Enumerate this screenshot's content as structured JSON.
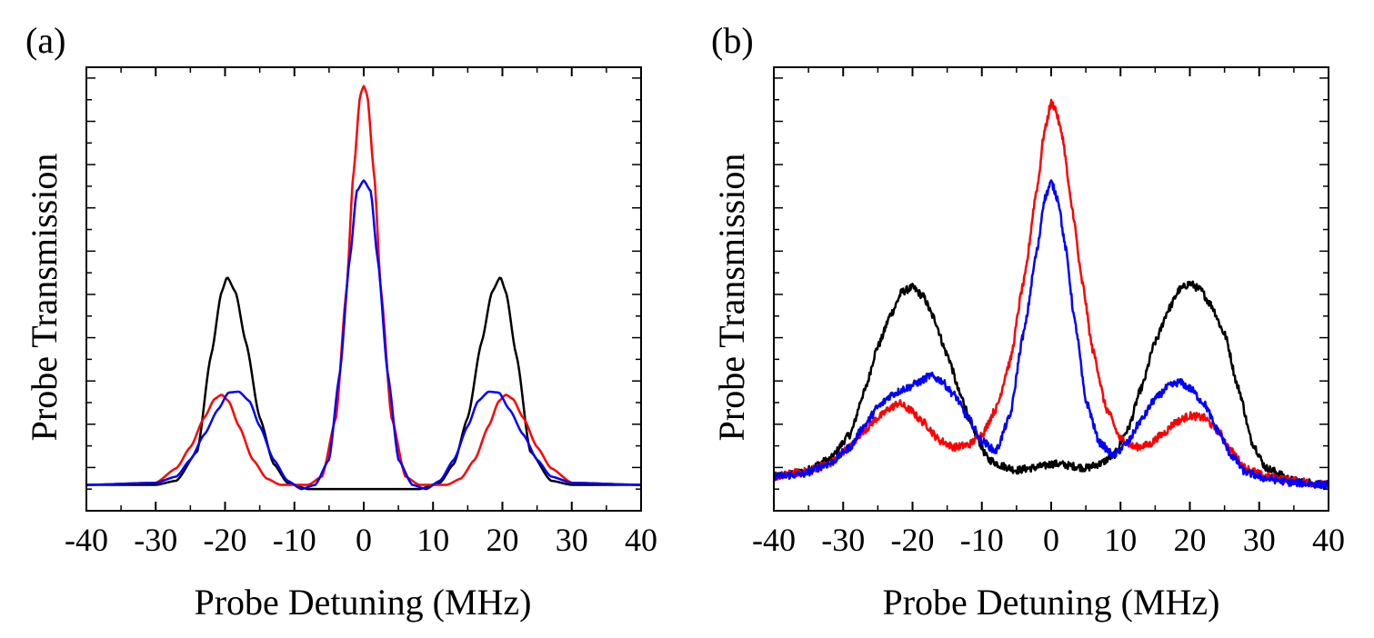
{
  "chart_data": [
    {
      "type": "line",
      "panel_label": "(a)",
      "xlabel": "Probe Detuning (MHz)",
      "ylabel": "Probe Transmission",
      "xlim": [
        -40,
        40
      ],
      "ylim": [
        0,
        1
      ],
      "x_ticks": [
        -40,
        -30,
        -20,
        -10,
        0,
        10,
        20,
        30,
        40
      ],
      "x_tick_labels": [
        "-40",
        "-30",
        "-20",
        "-10",
        "0",
        "10",
        "20",
        "30",
        "40"
      ],
      "y_tick_labels": false,
      "series": [
        {
          "name": "black",
          "color": "#000000",
          "points": [
            [
              -40,
              0.04
            ],
            [
              -30,
              0.04
            ],
            [
              -27,
              0.05
            ],
            [
              -24,
              0.12
            ],
            [
              -22,
              0.35
            ],
            [
              -20.5,
              0.5
            ],
            [
              -19.7,
              0.535
            ],
            [
              -18.5,
              0.5
            ],
            [
              -17,
              0.38
            ],
            [
              -15,
              0.2
            ],
            [
              -13,
              0.09
            ],
            [
              -11,
              0.045
            ],
            [
              -8,
              0.03
            ],
            [
              0,
              0.03
            ],
            [
              8,
              0.03
            ],
            [
              11,
              0.045
            ],
            [
              13,
              0.09
            ],
            [
              15,
              0.2
            ],
            [
              17,
              0.38
            ],
            [
              18.5,
              0.5
            ],
            [
              19.7,
              0.535
            ],
            [
              20.5,
              0.5
            ],
            [
              22,
              0.35
            ],
            [
              24,
              0.12
            ],
            [
              27,
              0.05
            ],
            [
              30,
              0.04
            ],
            [
              40,
              0.04
            ]
          ]
        },
        {
          "name": "red",
          "color": "#ff0000",
          "points": [
            [
              -40,
              0.04
            ],
            [
              -30,
              0.045
            ],
            [
              -27,
              0.08
            ],
            [
              -25,
              0.13
            ],
            [
              -23,
              0.2
            ],
            [
              -21.5,
              0.245
            ],
            [
              -20.5,
              0.255
            ],
            [
              -19.5,
              0.24
            ],
            [
              -18,
              0.18
            ],
            [
              -16,
              0.1
            ],
            [
              -14,
              0.055
            ],
            [
              -12,
              0.04
            ],
            [
              -8,
              0.04
            ],
            [
              -6,
              0.06
            ],
            [
              -4,
              0.2
            ],
            [
              -2.5,
              0.5
            ],
            [
              -1.5,
              0.78
            ],
            [
              -0.5,
              0.97
            ],
            [
              0,
              0.99
            ],
            [
              0.5,
              0.97
            ],
            [
              1.5,
              0.78
            ],
            [
              2.5,
              0.5
            ],
            [
              4,
              0.2
            ],
            [
              6,
              0.06
            ],
            [
              8,
              0.04
            ],
            [
              12,
              0.04
            ],
            [
              14,
              0.055
            ],
            [
              16,
              0.1
            ],
            [
              18,
              0.18
            ],
            [
              19.5,
              0.24
            ],
            [
              20.5,
              0.255
            ],
            [
              21.5,
              0.245
            ],
            [
              23,
              0.2
            ],
            [
              25,
              0.13
            ],
            [
              27,
              0.08
            ],
            [
              30,
              0.045
            ],
            [
              40,
              0.04
            ]
          ]
        },
        {
          "name": "blue",
          "color": "#0000ff",
          "points": [
            [
              -40,
              0.04
            ],
            [
              -30,
              0.045
            ],
            [
              -27,
              0.06
            ],
            [
              -25,
              0.1
            ],
            [
              -23,
              0.16
            ],
            [
              -21,
              0.22
            ],
            [
              -19.5,
              0.26
            ],
            [
              -18,
              0.262
            ],
            [
              -16.5,
              0.24
            ],
            [
              -15,
              0.18
            ],
            [
              -13,
              0.1
            ],
            [
              -11,
              0.05
            ],
            [
              -9,
              0.03
            ],
            [
              -7,
              0.04
            ],
            [
              -5,
              0.1
            ],
            [
              -3.5,
              0.3
            ],
            [
              -2,
              0.58
            ],
            [
              -1,
              0.74
            ],
            [
              0,
              0.765
            ],
            [
              1,
              0.74
            ],
            [
              2,
              0.58
            ],
            [
              3.5,
              0.3
            ],
            [
              5,
              0.1
            ],
            [
              7,
              0.04
            ],
            [
              9,
              0.03
            ],
            [
              11,
              0.05
            ],
            [
              13,
              0.1
            ],
            [
              15,
              0.18
            ],
            [
              16.5,
              0.24
            ],
            [
              18,
              0.262
            ],
            [
              19.5,
              0.26
            ],
            [
              21,
              0.22
            ],
            [
              23,
              0.16
            ],
            [
              25,
              0.1
            ],
            [
              27,
              0.06
            ],
            [
              30,
              0.045
            ],
            [
              40,
              0.04
            ]
          ]
        }
      ]
    },
    {
      "type": "line",
      "panel_label": "(b)",
      "xlabel": "Probe Detuning (MHz)",
      "ylabel": "Probe Transmission",
      "xlim": [
        -40,
        40
      ],
      "ylim": [
        0,
        1
      ],
      "x_ticks": [
        -40,
        -30,
        -20,
        -10,
        0,
        10,
        20,
        30,
        40
      ],
      "x_tick_labels": [
        "-40",
        "-30",
        "-20",
        "-10",
        "0",
        "10",
        "20",
        "30",
        "40"
      ],
      "y_tick_labels": false,
      "noisy": true,
      "series": [
        {
          "name": "black",
          "color": "#000000",
          "points": [
            [
              -40,
              0.06
            ],
            [
              -36,
              0.07
            ],
            [
              -32,
              0.1
            ],
            [
              -29,
              0.16
            ],
            [
              -27,
              0.26
            ],
            [
              -25,
              0.37
            ],
            [
              -23,
              0.45
            ],
            [
              -21.5,
              0.5
            ],
            [
              -20,
              0.51
            ],
            [
              -18.5,
              0.49
            ],
            [
              -17,
              0.44
            ],
            [
              -15,
              0.35
            ],
            [
              -13,
              0.25
            ],
            [
              -11,
              0.16
            ],
            [
              -9,
              0.1
            ],
            [
              -7,
              0.085
            ],
            [
              -5,
              0.075
            ],
            [
              -3,
              0.08
            ],
            [
              -1,
              0.085
            ],
            [
              0,
              0.09
            ],
            [
              1,
              0.09
            ],
            [
              3,
              0.085
            ],
            [
              5,
              0.08
            ],
            [
              7,
              0.09
            ],
            [
              9,
              0.11
            ],
            [
              11,
              0.17
            ],
            [
              13,
              0.27
            ],
            [
              15,
              0.38
            ],
            [
              17,
              0.46
            ],
            [
              18.5,
              0.505
            ],
            [
              20,
              0.52
            ],
            [
              21.5,
              0.505
            ],
            [
              23,
              0.47
            ],
            [
              25,
              0.4
            ],
            [
              27,
              0.27
            ],
            [
              29,
              0.14
            ],
            [
              31,
              0.08
            ],
            [
              35,
              0.05
            ],
            [
              40,
              0.04
            ]
          ]
        },
        {
          "name": "red",
          "color": "#ff0000",
          "points": [
            [
              -40,
              0.06
            ],
            [
              -36,
              0.07
            ],
            [
              -32,
              0.09
            ],
            [
              -29,
              0.13
            ],
            [
              -27,
              0.17
            ],
            [
              -25,
              0.2
            ],
            [
              -23,
              0.225
            ],
            [
              -22,
              0.235
            ],
            [
              -20.5,
              0.22
            ],
            [
              -18.5,
              0.19
            ],
            [
              -16,
              0.145
            ],
            [
              -14,
              0.13
            ],
            [
              -12,
              0.135
            ],
            [
              -10,
              0.16
            ],
            [
              -8,
              0.22
            ],
            [
              -6,
              0.33
            ],
            [
              -4,
              0.52
            ],
            [
              -2,
              0.75
            ],
            [
              -1,
              0.88
            ],
            [
              0,
              0.95
            ],
            [
              0.5,
              0.94
            ],
            [
              1.5,
              0.88
            ],
            [
              3,
              0.7
            ],
            [
              4.5,
              0.52
            ],
            [
              6,
              0.36
            ],
            [
              8,
              0.22
            ],
            [
              10,
              0.15
            ],
            [
              12,
              0.13
            ],
            [
              14,
              0.135
            ],
            [
              16,
              0.16
            ],
            [
              18,
              0.19
            ],
            [
              20,
              0.205
            ],
            [
              22,
              0.2
            ],
            [
              24,
              0.17
            ],
            [
              26,
              0.12
            ],
            [
              28,
              0.08
            ],
            [
              31,
              0.06
            ],
            [
              35,
              0.05
            ],
            [
              40,
              0.04
            ]
          ]
        },
        {
          "name": "blue",
          "color": "#0000ff",
          "points": [
            [
              -40,
              0.06
            ],
            [
              -36,
              0.065
            ],
            [
              -32,
              0.09
            ],
            [
              -29,
              0.13
            ],
            [
              -27,
              0.18
            ],
            [
              -25,
              0.225
            ],
            [
              -23,
              0.255
            ],
            [
              -21,
              0.27
            ],
            [
              -19,
              0.285
            ],
            [
              -17.5,
              0.3
            ],
            [
              -16,
              0.29
            ],
            [
              -14,
              0.255
            ],
            [
              -12,
              0.2
            ],
            [
              -10,
              0.145
            ],
            [
              -8,
              0.12
            ],
            [
              -6,
              0.2
            ],
            [
              -4,
              0.4
            ],
            [
              -2,
              0.6
            ],
            [
              -1,
              0.72
            ],
            [
              0,
              0.76
            ],
            [
              1,
              0.72
            ],
            [
              2,
              0.61
            ],
            [
              3.5,
              0.42
            ],
            [
              5,
              0.24
            ],
            [
              7,
              0.14
            ],
            [
              9,
              0.11
            ],
            [
              11,
              0.14
            ],
            [
              13,
              0.195
            ],
            [
              15,
              0.245
            ],
            [
              17,
              0.275
            ],
            [
              18.5,
              0.285
            ],
            [
              20,
              0.27
            ],
            [
              22,
              0.235
            ],
            [
              24,
              0.17
            ],
            [
              26,
              0.11
            ],
            [
              28,
              0.07
            ],
            [
              31,
              0.055
            ],
            [
              35,
              0.045
            ],
            [
              40,
              0.04
            ]
          ]
        }
      ]
    }
  ]
}
